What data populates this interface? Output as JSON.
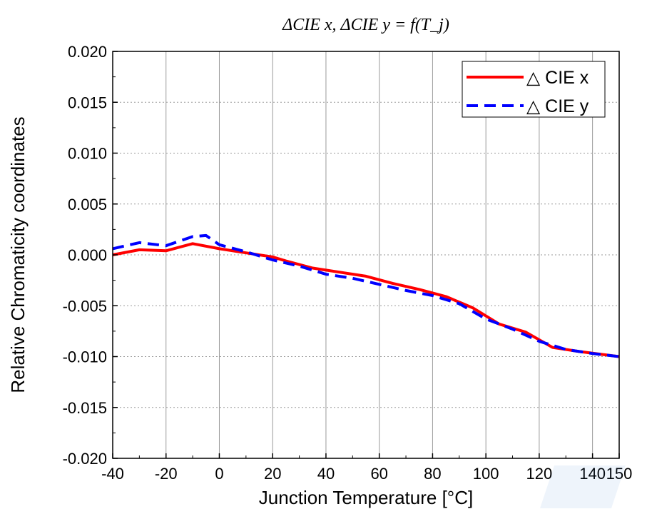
{
  "chart_data": {
    "type": "line",
    "title": "ΔCIE x, ΔCIE y = f(T_j)",
    "xlabel": "Junction Temperature [°C]",
    "ylabel": "Relative Chromaticity coordinates",
    "xlim": [
      -40,
      150
    ],
    "ylim": [
      -0.02,
      0.02
    ],
    "x_ticks": [
      "-40",
      "-20",
      "0",
      "20",
      "40",
      "60",
      "80",
      "100",
      "120",
      "140",
      "150"
    ],
    "y_ticks": [
      "0.020",
      "0.015",
      "0.010",
      "0.005",
      "0.000",
      "-0.005",
      "-0.010",
      "-0.015",
      "-0.020"
    ],
    "grid": true,
    "legend_position": "top-right",
    "series": [
      {
        "name": "△ CIE x",
        "color": "#ff0000",
        "style": "solid",
        "x": [
          -40,
          -30,
          -20,
          -10,
          0,
          10,
          20,
          25,
          35,
          45,
          55,
          65,
          75,
          85,
          95,
          105,
          115,
          125,
          135,
          150
        ],
        "y": [
          0.0,
          0.0005,
          0.0004,
          0.0011,
          0.0006,
          0.0002,
          -0.0002,
          -0.0006,
          -0.0013,
          -0.0017,
          -0.0021,
          -0.0028,
          -0.0034,
          -0.0041,
          -0.0052,
          -0.0068,
          -0.0076,
          -0.0091,
          -0.0095,
          -0.01
        ]
      },
      {
        "name": "△ CIE y",
        "color": "#0000ff",
        "style": "dashed",
        "x": [
          -40,
          -30,
          -20,
          -10,
          -5,
          0,
          10,
          20,
          30,
          40,
          50,
          60,
          70,
          80,
          90,
          100,
          110,
          120,
          130,
          140,
          150
        ],
        "y": [
          0.0006,
          0.0012,
          0.0009,
          0.0018,
          0.0019,
          0.001,
          0.0003,
          -0.0005,
          -0.0011,
          -0.0019,
          -0.0023,
          -0.0029,
          -0.0035,
          -0.004,
          -0.0048,
          -0.0063,
          -0.0073,
          -0.0085,
          -0.0093,
          -0.0097,
          -0.01
        ]
      }
    ]
  }
}
